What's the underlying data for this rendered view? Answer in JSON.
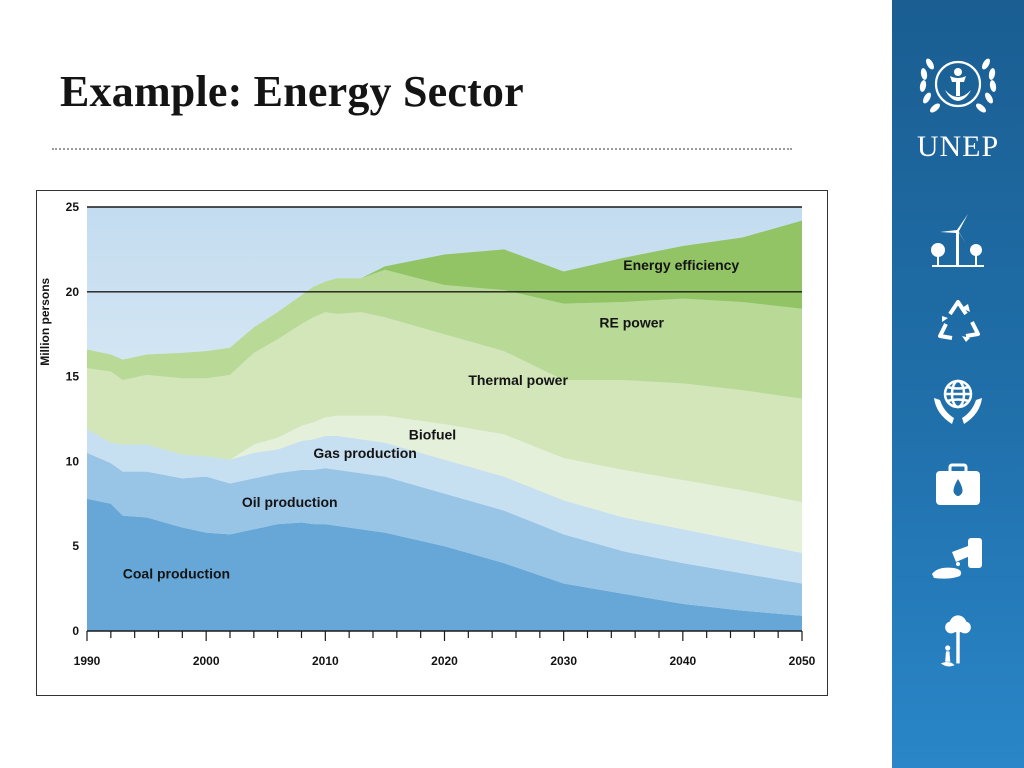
{
  "slide": {
    "title": "Example: Energy Sector"
  },
  "logo": {
    "text": "UNEP"
  },
  "sidebar_icons": [
    "wind-turbine-icon",
    "recycle-icon",
    "globe-hands-icon",
    "oil-briefcase-icon",
    "oil-spill-icon",
    "tree-person-icon"
  ],
  "colors": {
    "coal": "#67a7d7",
    "oil": "#98c4e6",
    "gas": "#c6dff1",
    "biofuel": "#e5f0da",
    "thermal": "#d2e6b9",
    "re_power": "#b9da96",
    "efficiency": "#92c465",
    "sky_top": "#c3dcef",
    "sky_bottom": "#eef6fb"
  },
  "chart_data": {
    "type": "area",
    "stacked": true,
    "ylabel": "Million persons",
    "xlabel": "",
    "x": [
      1990,
      1992,
      1993,
      1995,
      1998,
      2000,
      2002,
      2004,
      2006,
      2008,
      2009,
      2010,
      2011,
      2013,
      2015,
      2020,
      2025,
      2030,
      2035,
      2040,
      2045,
      2050
    ],
    "xlim": [
      1990,
      2050
    ],
    "ylim": [
      0,
      25
    ],
    "x_ticks": [
      1990,
      2000,
      2010,
      2020,
      2030,
      2040,
      2050
    ],
    "y_ticks": [
      0,
      5,
      10,
      15,
      20,
      25
    ],
    "gridlines_y": [
      20,
      25
    ],
    "series": [
      {
        "name": "Coal production",
        "color_key": "coal",
        "values": [
          7.8,
          7.5,
          6.8,
          6.7,
          6.1,
          5.8,
          5.7,
          6.0,
          6.3,
          6.4,
          6.3,
          6.3,
          6.2,
          6.0,
          5.8,
          5.0,
          4.0,
          2.8,
          2.2,
          1.6,
          1.2,
          0.9
        ]
      },
      {
        "name": "Oil production",
        "color_key": "oil",
        "values": [
          2.7,
          2.4,
          2.6,
          2.7,
          2.9,
          3.3,
          3.0,
          3.0,
          3.0,
          3.1,
          3.2,
          3.3,
          3.3,
          3.3,
          3.3,
          3.1,
          3.1,
          2.9,
          2.5,
          2.4,
          2.2,
          1.9
        ]
      },
      {
        "name": "Gas production",
        "color_key": "gas",
        "values": [
          1.4,
          1.2,
          1.6,
          1.6,
          1.4,
          1.2,
          1.4,
          1.5,
          1.4,
          1.7,
          1.8,
          1.9,
          2.0,
          2.0,
          2.0,
          2.0,
          2.0,
          2.0,
          2.0,
          2.0,
          1.9,
          1.8
        ]
      },
      {
        "name": "Biofuel",
        "color_key": "biofuel",
        "values": [
          0.0,
          0.0,
          0.0,
          0.0,
          0.0,
          0.0,
          0.0,
          0.5,
          0.7,
          0.9,
          1.0,
          1.1,
          1.2,
          1.4,
          1.6,
          2.1,
          2.5,
          2.5,
          2.8,
          2.9,
          3.0,
          3.0
        ]
      },
      {
        "name": "Thermal power",
        "color_key": "thermal",
        "values": [
          3.6,
          4.2,
          3.8,
          4.1,
          4.5,
          4.6,
          5.0,
          5.4,
          5.8,
          6.0,
          6.2,
          6.2,
          6.0,
          6.1,
          5.8,
          5.3,
          4.9,
          4.6,
          5.3,
          5.7,
          5.9,
          6.1
        ]
      },
      {
        "name": "RE power",
        "color_key": "re_power",
        "values": [
          1.1,
          1.0,
          1.2,
          1.2,
          1.5,
          1.6,
          1.6,
          1.5,
          1.6,
          1.7,
          1.8,
          1.8,
          2.1,
          2.0,
          2.8,
          2.9,
          3.6,
          4.5,
          4.6,
          5.0,
          5.2,
          5.3
        ]
      },
      {
        "name": "Energy efficiency",
        "color_key": "efficiency",
        "values": [
          0.0,
          0.0,
          0.0,
          0.0,
          0.0,
          0.0,
          0.0,
          0.0,
          0.0,
          0.0,
          0.0,
          0.0,
          0.0,
          0.0,
          0.2,
          1.8,
          2.4,
          1.9,
          2.6,
          3.1,
          3.8,
          5.2
        ]
      }
    ],
    "series_labels": [
      {
        "text": "Coal production",
        "x": 1993,
        "y": 3.1
      },
      {
        "text": "Oil production",
        "x": 2003,
        "y": 7.3
      },
      {
        "text": "Gas production",
        "x": 2009,
        "y": 10.2
      },
      {
        "text": "Biofuel",
        "x": 2017,
        "y": 11.3
      },
      {
        "text": "Thermal power",
        "x": 2022,
        "y": 14.5
      },
      {
        "text": "RE power",
        "x": 2033,
        "y": 17.9
      },
      {
        "text": "Energy efficiency",
        "x": 2035,
        "y": 21.3
      }
    ]
  }
}
